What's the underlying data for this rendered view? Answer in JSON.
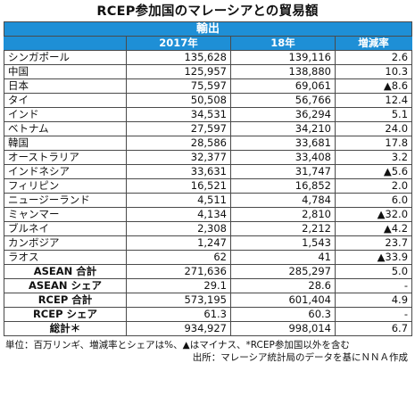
{
  "title": "RCEP参加国のマレーシアとの貿易額",
  "section_header": "輸出",
  "columns": [
    "",
    "2017年",
    "18年",
    "増減率"
  ],
  "rows": [
    {
      "name": "シンガポール",
      "y2017": "135,628",
      "y2018": "139,116",
      "change": "2.6"
    },
    {
      "name": "中国",
      "y2017": "125,957",
      "y2018": "138,880",
      "change": "10.3"
    },
    {
      "name": "日本",
      "y2017": "75,597",
      "y2018": "69,061",
      "change": "▲8.6"
    },
    {
      "name": "タイ",
      "y2017": "50,508",
      "y2018": "56,766",
      "change": "12.4"
    },
    {
      "name": "インド",
      "y2017": "34,531",
      "y2018": "36,294",
      "change": "5.1"
    },
    {
      "name": "ベトナム",
      "y2017": "27,597",
      "y2018": "34,210",
      "change": "24.0"
    },
    {
      "name": "韓国",
      "y2017": "28,586",
      "y2018": "33,681",
      "change": "17.8"
    },
    {
      "name": "オーストラリア",
      "y2017": "32,377",
      "y2018": "33,408",
      "change": "3.2"
    },
    {
      "name": "インドネシア",
      "y2017": "33,631",
      "y2018": "31,747",
      "change": "▲5.6"
    },
    {
      "name": "フィリピン",
      "y2017": "16,521",
      "y2018": "16,852",
      "change": "2.0"
    },
    {
      "name": "ニュージーランド",
      "y2017": "4,511",
      "y2018": "4,784",
      "change": "6.0"
    },
    {
      "name": "ミャンマー",
      "y2017": "4,134",
      "y2018": "2,810",
      "change": "▲32.0"
    },
    {
      "name": "ブルネイ",
      "y2017": "2,308",
      "y2018": "2,212",
      "change": "▲4.2"
    },
    {
      "name": "カンボジア",
      "y2017": "1,247",
      "y2018": "1,543",
      "change": "23.7"
    },
    {
      "name": "ラオス",
      "y2017": "62",
      "y2018": "41",
      "change": "▲33.9"
    }
  ],
  "aggregates": [
    {
      "name": "ASEAN 合計",
      "y2017": "271,636",
      "y2018": "285,297",
      "change": "5.0"
    },
    {
      "name": "ASEAN シェア",
      "y2017": "29.1",
      "y2018": "28.6",
      "change": "-"
    },
    {
      "name": "RCEP 合計",
      "y2017": "573,195",
      "y2018": "601,404",
      "change": "4.9"
    },
    {
      "name": "RCEP シェア",
      "y2017": "61.3",
      "y2018": "60.3",
      "change": "-"
    },
    {
      "name": "総計＊",
      "y2017": "934,927",
      "y2018": "998,014",
      "change": "6.7"
    }
  ],
  "notes": [
    "単位：百万リンギ、増減率とシェアは%、▲はマイナス、*RCEP参加国以外を含む",
    "出所：マレーシア統計局のデータを基にＮＮＡ作成"
  ]
}
